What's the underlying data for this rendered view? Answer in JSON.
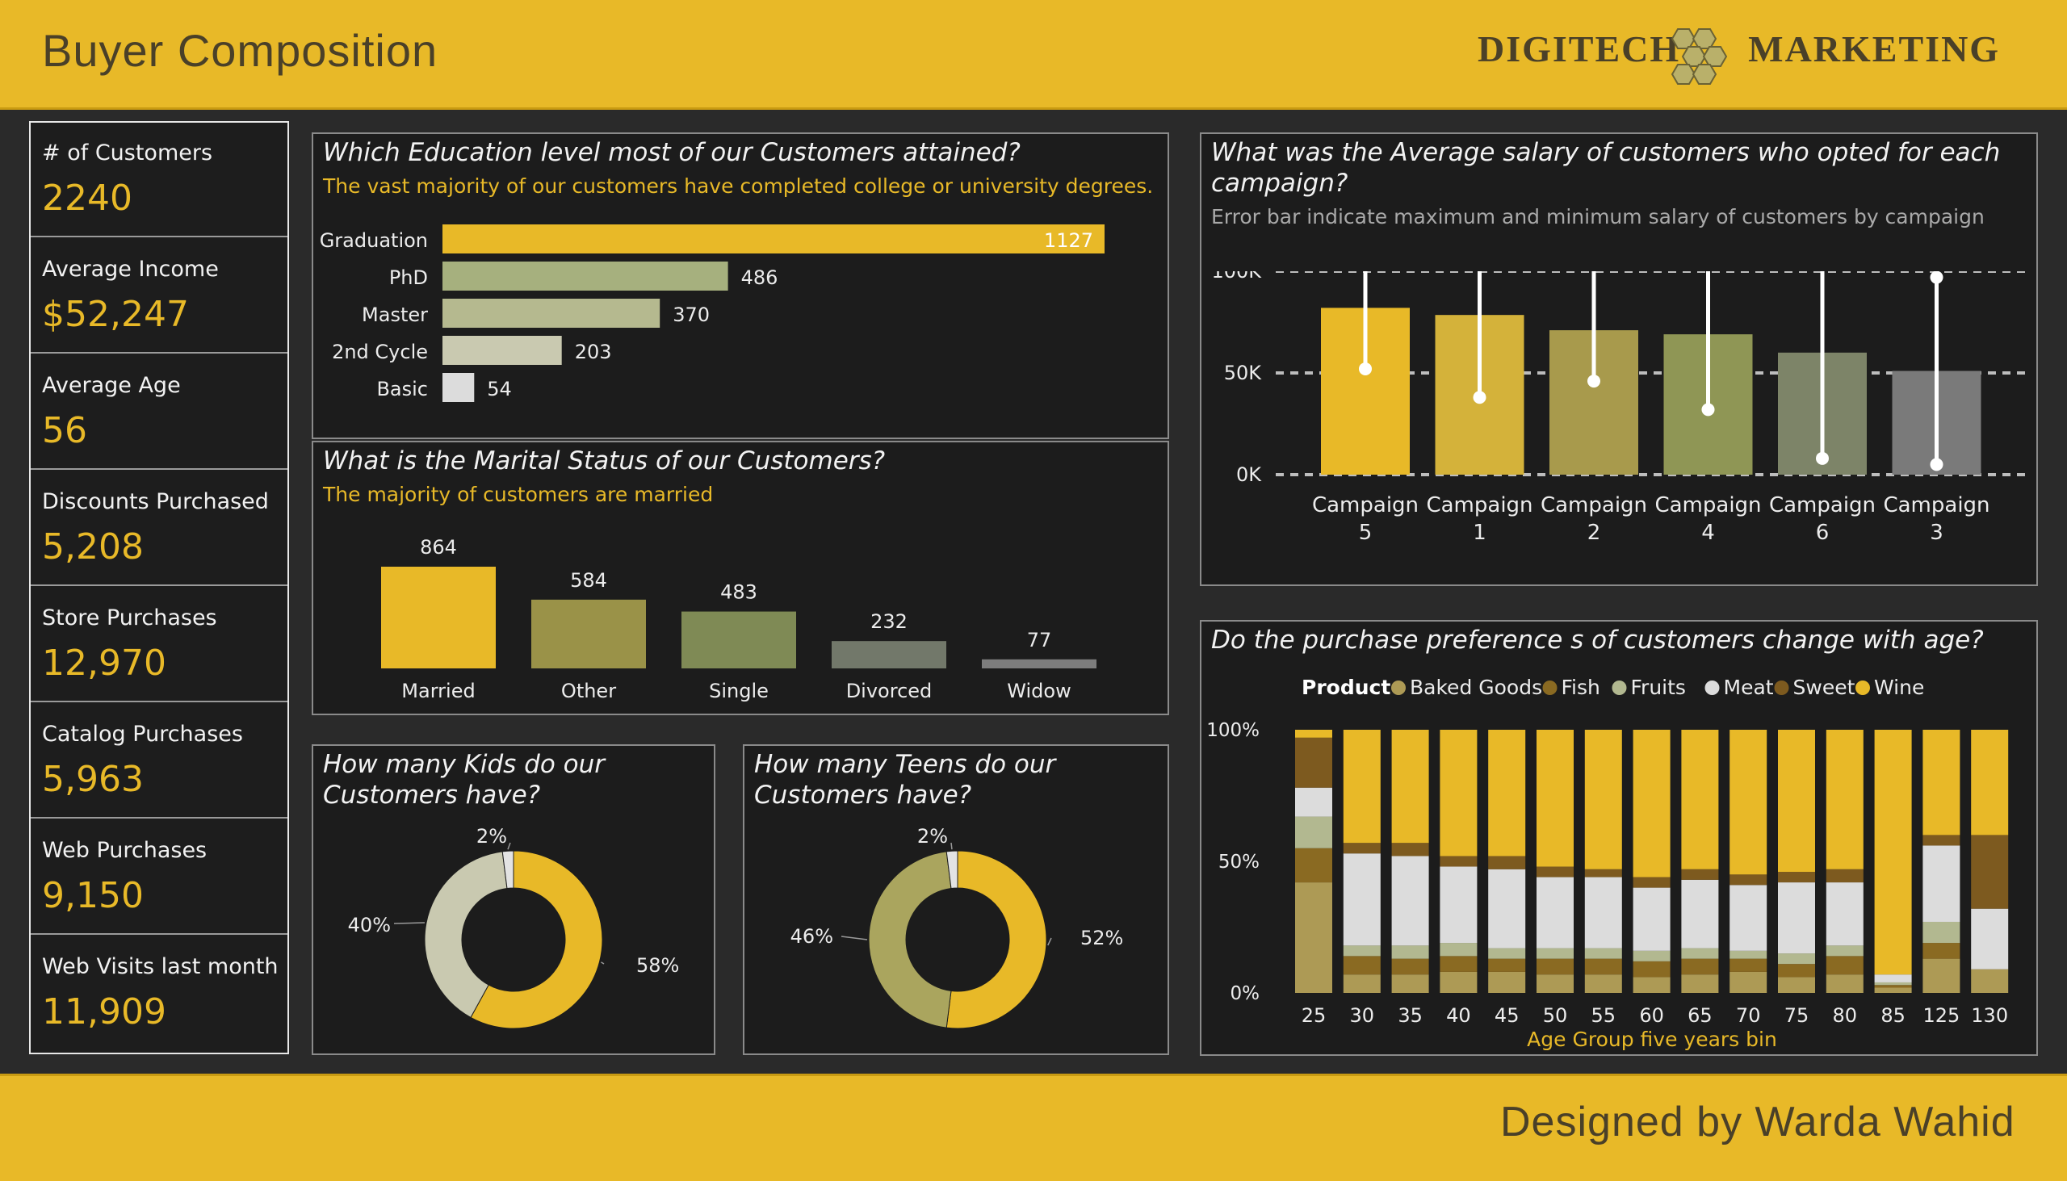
{
  "header": {
    "title": "Buyer Composition",
    "brand_part1": "DIGITECH",
    "brand_part2": "MARKETING"
  },
  "footer": {
    "designer": "Designed by Warda Wahid"
  },
  "kpis": [
    {
      "label": "# of Customers",
      "value": "2240"
    },
    {
      "label": "Average Income",
      "value": "$52,247"
    },
    {
      "label": "Average Age",
      "value": "56"
    },
    {
      "label": "Discounts Purchased",
      "value": "5,208"
    },
    {
      "label": "Store Purchases",
      "value": "12,970"
    },
    {
      "label": "Catalog Purchases",
      "value": "5,963"
    },
    {
      "label": "Web Purchases",
      "value": "9,150"
    },
    {
      "label": "Web Visits last month",
      "value": "11,909"
    }
  ],
  "education": {
    "title": "Which Education level most of our Customers attained?",
    "subtitle": "The vast majority of our customers have completed college or university degrees."
  },
  "marital": {
    "title": "What is the Marital Status of our Customers?",
    "subtitle": "The majority of customers are married"
  },
  "kids": {
    "title": "How many Kids do our Customers have?"
  },
  "teens": {
    "title": "How many Teens do our Customers have?"
  },
  "salary": {
    "title": "What was the Average salary of customers who opted for each campaign?",
    "subtitle": "Error bar indicate maximum and minimum salary of customers by campaign"
  },
  "age_pref": {
    "title": "Do the purchase preference s of customers change with age?",
    "legend_title": "Product"
  },
  "colors": {
    "accent": "#e8b928",
    "bg": "#1c1c1c",
    "baked_goods": "#ad9a55",
    "fish": "#8a6a22",
    "fruits": "#b2b890",
    "meat": "#dcdcdc",
    "sweet": "#7d5a1f",
    "wine": "#e8b928"
  },
  "chart_data": [
    {
      "type": "bar",
      "orientation": "horizontal",
      "categories": [
        "Graduation",
        "PhD",
        "Master",
        "2nd Cycle",
        "Basic"
      ],
      "values": [
        1127,
        486,
        370,
        203,
        54
      ],
      "colors": [
        "#e8b928",
        "#a6b07e",
        "#b5b98f",
        "#c9c9b0",
        "#dcdcdc"
      ]
    },
    {
      "type": "bar",
      "categories": [
        "Married",
        "Other",
        "Single",
        "Divorced",
        "Widow"
      ],
      "values": [
        864,
        584,
        483,
        232,
        77
      ],
      "colors": [
        "#e8b928",
        "#9a9248",
        "#7f8a55",
        "#72786a",
        "#7d7d7d"
      ]
    },
    {
      "type": "pie",
      "donut": true,
      "labels": [
        "58%",
        "40%",
        "2%"
      ],
      "values": [
        58,
        40,
        2
      ],
      "colors": [
        "#e8b928",
        "#c9c9b0",
        "#e3e3e3"
      ]
    },
    {
      "type": "pie",
      "donut": true,
      "labels": [
        "52%",
        "46%",
        "2%"
      ],
      "values": [
        52,
        46,
        2
      ],
      "colors": [
        "#e8b928",
        "#aaa55e",
        "#e3e3e3"
      ]
    },
    {
      "type": "bar",
      "categories": [
        "Campaign 5",
        "Campaign 1",
        "Campaign 2",
        "Campaign 4",
        "Campaign 6",
        "Campaign 3"
      ],
      "values": [
        82000,
        78500,
        71000,
        69000,
        60000,
        51000
      ],
      "error_max": [
        105000,
        105000,
        103000,
        103000,
        105000,
        97000
      ],
      "error_min": [
        52000,
        38000,
        46000,
        32000,
        8000,
        5000
      ],
      "ylim": [
        0,
        110000
      ],
      "yticks": [
        "0K",
        "50K",
        "100K"
      ],
      "colors": [
        "#e8b928",
        "#d4b23a",
        "#a89a4c",
        "#8f9655",
        "#7d8468",
        "#7a7a7a"
      ]
    },
    {
      "type": "bar",
      "stacked": true,
      "percent": true,
      "categories": [
        "25",
        "30",
        "35",
        "40",
        "45",
        "50",
        "55",
        "60",
        "65",
        "70",
        "75",
        "80",
        "85",
        "125",
        "130"
      ],
      "xlabel": "Age Group five years bin",
      "yticks": [
        "0%",
        "50%",
        "100%"
      ],
      "series": [
        {
          "name": "Baked Goods",
          "values": [
            42,
            7,
            7,
            8,
            8,
            7,
            7,
            6,
            7,
            8,
            6,
            7,
            2,
            13,
            9
          ]
        },
        {
          "name": "Fish",
          "values": [
            13,
            7,
            6,
            6,
            5,
            6,
            6,
            6,
            6,
            5,
            5,
            7,
            1,
            6,
            0
          ]
        },
        {
          "name": "Fruits",
          "values": [
            12,
            4,
            5,
            5,
            4,
            4,
            4,
            4,
            4,
            3,
            4,
            4,
            1,
            8,
            0
          ]
        },
        {
          "name": "Meat",
          "values": [
            11,
            35,
            34,
            29,
            30,
            27,
            27,
            24,
            26,
            25,
            27,
            24,
            3,
            29,
            23
          ]
        },
        {
          "name": "Sweet",
          "values": [
            19,
            4,
            5,
            4,
            5,
            4,
            3,
            4,
            4,
            4,
            4,
            5,
            0,
            4,
            28
          ]
        },
        {
          "name": "Wine",
          "values": [
            3,
            43,
            43,
            48,
            48,
            52,
            53,
            56,
            53,
            55,
            54,
            53,
            93,
            40,
            40
          ]
        }
      ]
    }
  ]
}
